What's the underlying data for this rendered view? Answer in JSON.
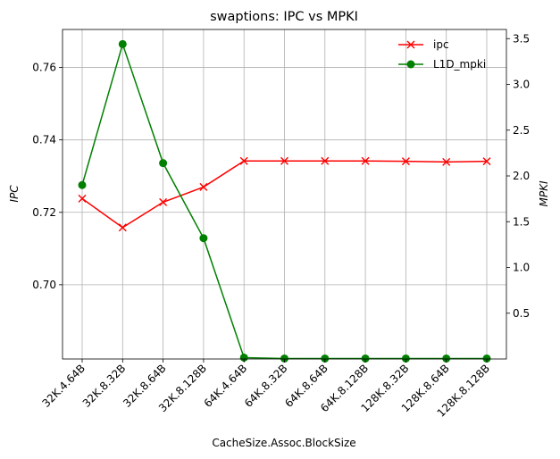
{
  "chart_data": {
    "type": "line",
    "title": "swaptions: IPC vs MPKI",
    "xlabel": "CacheSize.Assoc.BlockSize",
    "ylabel_left": "IPC",
    "ylabel_right": "MPKI",
    "categories": [
      "32K.4.64B",
      "32K.8.32B",
      "32K.8.64B",
      "32K.8.128B",
      "64K.4.64B",
      "64K.8.32B",
      "64K.8.64B",
      "64K.8.128B",
      "128K.8.32B",
      "128K.8.64B",
      "128K.8.128B"
    ],
    "ylim_left": [
      0.6795,
      0.7705
    ],
    "ylim_right": [
      0.0,
      3.6
    ],
    "yticks_left": [
      "0.70",
      "0.72",
      "0.74",
      "0.76"
    ],
    "yticks_right": [
      "0.5",
      "1.0",
      "1.5",
      "2.0",
      "2.5",
      "3.0",
      "3.5"
    ],
    "grid": true,
    "legend_position": "top-right",
    "series": [
      {
        "name": "ipc",
        "axis": "left",
        "color": "#ff0000",
        "marker": "x",
        "values": [
          0.7238,
          0.7158,
          0.7228,
          0.727,
          0.7342,
          0.7342,
          0.7342,
          0.7342,
          0.7341,
          0.7339,
          0.7341
        ]
      },
      {
        "name": "L1D_mpki",
        "axis": "right",
        "color": "#008000",
        "marker": "o",
        "values": [
          1.9,
          3.44,
          2.14,
          1.32,
          0.015,
          0.005,
          0.005,
          0.005,
          0.005,
          0.005,
          0.005
        ]
      }
    ]
  }
}
